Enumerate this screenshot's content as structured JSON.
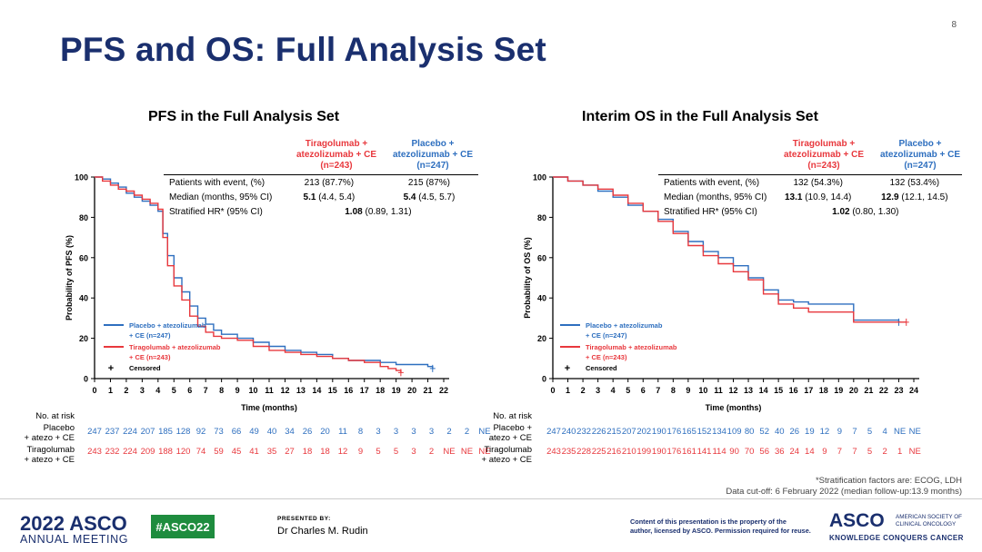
{
  "slide_number": "8",
  "title": "PFS and OS: Full Analysis Set",
  "panels": [
    {
      "title": "PFS in the Full Analysis Set",
      "arm_tira_header": "Tiragolumab +\natezolizumab + CE\n(n=243)",
      "arm_plac_header": "Placebo +\natezolizumab + CE\n(n=247)",
      "stats": {
        "events_label": "Patients with event, (%)",
        "events_tira": "213 (87.7%)",
        "events_plac": "215 (87%)",
        "median_label": "Median (months, 95% CI)",
        "median_tira_bold": "5.1",
        "median_tira_rest": " (4.4, 5.4)",
        "median_plac_bold": "5.4",
        "median_plac_rest": " (4.5, 5.7)",
        "hr_label": "Stratified HR* (95% CI)",
        "hr_bold": "1.08",
        "hr_rest": " (0.89, 1.31)"
      },
      "legend": {
        "plac1": "Placebo + atezolizumab",
        "plac2": "+ CE (n=247)",
        "tira1": "Tiragolumab + atezolizumab",
        "tira2": "+ CE (n=243)",
        "censored": "Censored"
      },
      "risk": {
        "header": "No. at risk",
        "plac_label": "Placebo\n+ atezo + CE",
        "tira_label": "Tiragolumab\n+ atezo + CE",
        "plac": [
          "247",
          "237",
          "224",
          "207",
          "185",
          "128",
          "92",
          "73",
          "66",
          "49",
          "40",
          "34",
          "26",
          "20",
          "11",
          "8",
          "3",
          "3",
          "3",
          "3",
          "2",
          "2",
          "NE"
        ],
        "tira": [
          "243",
          "232",
          "224",
          "209",
          "188",
          "120",
          "74",
          "59",
          "45",
          "41",
          "35",
          "27",
          "18",
          "18",
          "12",
          "9",
          "5",
          "5",
          "3",
          "2",
          "NE",
          "NE",
          "NE"
        ]
      }
    },
    {
      "title": "Interim OS in the Full Analysis Set",
      "arm_tira_header": "Tiragolumab +\natezolizumab + CE\n(n=243)",
      "arm_plac_header": "Placebo +\natezolizumab + CE\n(n=247)",
      "stats": {
        "events_label": "Patients with event, (%)",
        "events_tira": "132 (54.3%)",
        "events_plac": "132 (53.4%)",
        "median_label": "Median (months, 95% CI)",
        "median_tira_bold": "13.1",
        "median_tira_rest": " (10.9, 14.4)",
        "median_plac_bold": "12.9",
        "median_plac_rest": " (12.1, 14.5)",
        "hr_label": "Stratified HR* (95% CI)",
        "hr_bold": "1.02",
        "hr_rest": " (0.80, 1.30)"
      },
      "legend": {
        "plac1": "Placebo + atezolizumab",
        "plac2": "+ CE (n=247)",
        "tira1": "Tiragolumab + atezolizumab",
        "tira2": "+ CE (n=243)",
        "censored": "Censored"
      },
      "risk": {
        "header": "No. at risk",
        "plac_label": "Placebo +\natezo + CE",
        "tira_label": "Tiragolumab\n+ atezo + CE",
        "plac": [
          "247",
          "240",
          "232",
          "226",
          "215",
          "207",
          "202",
          "190",
          "176",
          "165",
          "152",
          "134",
          "109",
          "80",
          "52",
          "40",
          "26",
          "19",
          "12",
          "9",
          "7",
          "5",
          "4",
          "NE",
          "NE"
        ],
        "tira": [
          "243",
          "235",
          "228",
          "225",
          "216",
          "210",
          "199",
          "190",
          "176",
          "161",
          "141",
          "114",
          "90",
          "70",
          "56",
          "36",
          "24",
          "14",
          "9",
          "7",
          "7",
          "5",
          "2",
          "1",
          "NE"
        ]
      }
    }
  ],
  "chart_data": [
    {
      "type": "line",
      "title": "PFS in the Full Analysis Set",
      "xlabel": "Time (months)",
      "ylabel": "Probability of PFS (%)",
      "xlim": [
        0,
        22
      ],
      "ylim": [
        0,
        100
      ],
      "x_ticks": [
        "0",
        "1",
        "2",
        "3",
        "4",
        "5",
        "6",
        "7",
        "8",
        "9",
        "10",
        "11",
        "12",
        "13",
        "14",
        "15",
        "16",
        "17",
        "18",
        "19",
        "20",
        "21",
        "22"
      ],
      "y_ticks": [
        "0",
        "20",
        "40",
        "60",
        "80",
        "100"
      ],
      "series": [
        {
          "name": "Placebo + atezolizumab + CE (n=247)",
          "color": "#2e6fbf",
          "x": [
            0,
            0.5,
            1,
            1.5,
            2,
            2.5,
            3,
            3.5,
            4,
            4.3,
            4.6,
            5,
            5.5,
            6,
            6.5,
            7,
            7.5,
            8,
            9,
            10,
            11,
            12,
            13,
            14,
            15,
            16,
            17,
            18,
            19,
            20,
            21,
            21.3
          ],
          "y": [
            100,
            99,
            97,
            95,
            92,
            90,
            88,
            86,
            83,
            72,
            61,
            50,
            43,
            36,
            30,
            27,
            24,
            22,
            20,
            18,
            16,
            14,
            13,
            12,
            10,
            9,
            9,
            8,
            7,
            7,
            6,
            5
          ]
        },
        {
          "name": "Tiragolumab + atezolizumab + CE (n=243)",
          "color": "#e8383d",
          "x": [
            0,
            0.5,
            1,
            1.5,
            2,
            2.5,
            3,
            3.5,
            4,
            4.3,
            4.6,
            5,
            5.5,
            6,
            6.5,
            7,
            7.5,
            8,
            9,
            10,
            11,
            12,
            13,
            14,
            15,
            16,
            17,
            18,
            18.5,
            19,
            19.3
          ],
          "y": [
            100,
            98,
            96,
            94,
            93,
            91,
            89,
            87,
            84,
            70,
            56,
            46,
            39,
            31,
            26,
            23,
            21,
            20,
            19,
            16,
            14,
            13,
            12,
            11,
            10,
            9,
            8,
            6,
            5,
            4,
            3
          ]
        }
      ]
    },
    {
      "type": "line",
      "title": "Interim OS in the Full Analysis Set",
      "xlabel": "Time (months)",
      "ylabel": "Probability of OS (%)",
      "xlim": [
        0,
        24
      ],
      "ylim": [
        0,
        100
      ],
      "x_ticks": [
        "0",
        "1",
        "2",
        "3",
        "4",
        "5",
        "6",
        "7",
        "8",
        "9",
        "10",
        "11",
        "12",
        "13",
        "14",
        "15",
        "16",
        "17",
        "18",
        "19",
        "20",
        "21",
        "22",
        "23",
        "24"
      ],
      "y_ticks": [
        "0",
        "20",
        "40",
        "60",
        "80",
        "100"
      ],
      "series": [
        {
          "name": "Placebo + atezolizumab + CE (n=247)",
          "color": "#2e6fbf",
          "x": [
            0,
            1,
            2,
            3,
            4,
            5,
            6,
            7,
            8,
            9,
            10,
            11,
            12,
            13,
            14,
            15,
            16,
            17,
            18,
            19,
            19.5,
            20,
            21,
            22,
            23
          ],
          "y": [
            100,
            98,
            96,
            93,
            90,
            86,
            83,
            79,
            73,
            68,
            63,
            60,
            56,
            50,
            44,
            39,
            38,
            37,
            37,
            37,
            37,
            29,
            29,
            29,
            28
          ]
        },
        {
          "name": "Tiragolumab + atezolizumab + CE (n=243)",
          "color": "#e8383d",
          "x": [
            0,
            1,
            2,
            3,
            4,
            5,
            6,
            7,
            8,
            9,
            10,
            11,
            12,
            13,
            14,
            15,
            16,
            17,
            18,
            19,
            19.5,
            20,
            21,
            22,
            23,
            23.5
          ],
          "y": [
            100,
            98,
            96,
            94,
            91,
            87,
            83,
            78,
            72,
            66,
            61,
            57,
            53,
            49,
            42,
            37,
            35,
            33,
            33,
            33,
            33,
            28,
            28,
            28,
            28,
            28
          ]
        }
      ]
    }
  ],
  "footnote1": "*Stratification factors are: ECOG, LDH",
  "footnote2": "Data cut-off: 6 February 2022 (median follow-up:13.9 months)",
  "footer": {
    "meeting_year": "2022 ASCO",
    "meeting_sub": "ANNUAL MEETING",
    "hashtag": "#ASCO22",
    "presented_by": "PRESENTED BY:",
    "presenter": "Dr Charles M. Rudin",
    "content_note1": "Content of this presentation is the property of the",
    "content_note2": "author, licensed by ASCO. Permission required for reuse.",
    "asco": "ASCO",
    "society1": "AMERICAN SOCIETY OF",
    "society2": "CLINICAL ONCOLOGY",
    "tagline": "KNOWLEDGE CONQUERS CANCER"
  }
}
